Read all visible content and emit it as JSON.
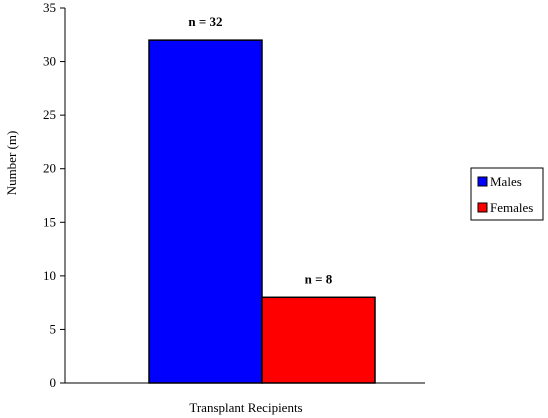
{
  "chart_data": {
    "type": "bar",
    "title": "",
    "xlabel": "Transplant Recipients",
    "ylabel": "Number (m)",
    "ylim": [
      0,
      35
    ],
    "yticks": [
      0,
      5,
      10,
      15,
      20,
      25,
      30,
      35
    ],
    "categories": [
      "Transplant Recipients"
    ],
    "series": [
      {
        "name": "Males",
        "values": [
          32
        ],
        "color": "#0000ff",
        "label": "n = 32"
      },
      {
        "name": "Females",
        "values": [
          8
        ],
        "color": "#ff0000",
        "label": "n = 8"
      }
    ],
    "grid": false,
    "legend": "right"
  }
}
